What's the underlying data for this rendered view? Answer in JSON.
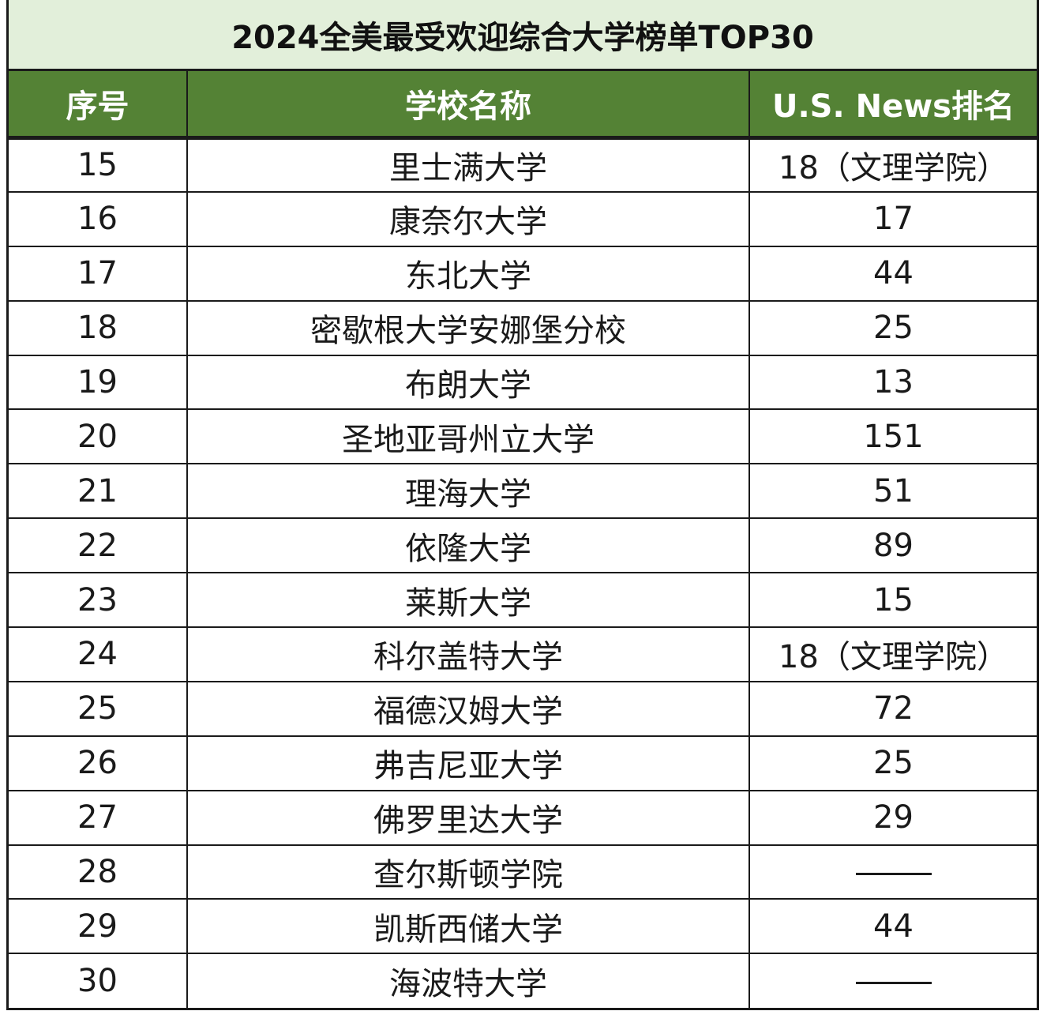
{
  "title": "2024全美最受欢迎综合大学榜单TOP30",
  "headers": {
    "index": "序号",
    "school": "学校名称",
    "rank": "U.S. News排名"
  },
  "rows": [
    {
      "index": "15",
      "school": "里士满大学",
      "rank": "18（文理学院）"
    },
    {
      "index": "16",
      "school": "康奈尔大学",
      "rank": "17"
    },
    {
      "index": "17",
      "school": "东北大学",
      "rank": "44"
    },
    {
      "index": "18",
      "school": "密歇根大学安娜堡分校",
      "rank": "25"
    },
    {
      "index": "19",
      "school": "布朗大学",
      "rank": "13"
    },
    {
      "index": "20",
      "school": "圣地亚哥州立大学",
      "rank": "151"
    },
    {
      "index": "21",
      "school": "理海大学",
      "rank": "51"
    },
    {
      "index": "22",
      "school": "依隆大学",
      "rank": "89"
    },
    {
      "index": "23",
      "school": "莱斯大学",
      "rank": "15"
    },
    {
      "index": "24",
      "school": "科尔盖特大学",
      "rank": "18（文理学院）"
    },
    {
      "index": "25",
      "school": "福德汉姆大学",
      "rank": "72"
    },
    {
      "index": "26",
      "school": "弗吉尼亚大学",
      "rank": "25"
    },
    {
      "index": "27",
      "school": "佛罗里达大学",
      "rank": "29"
    },
    {
      "index": "28",
      "school": "查尔斯顿学院",
      "rank": null
    },
    {
      "index": "29",
      "school": "凯斯西储大学",
      "rank": "44"
    },
    {
      "index": "30",
      "school": "海波特大学",
      "rank": null
    }
  ],
  "colors": {
    "title_bg": "#e2efda",
    "header_bg": "#548235",
    "header_text": "#ffffff",
    "grid": "#1a1a1a"
  }
}
